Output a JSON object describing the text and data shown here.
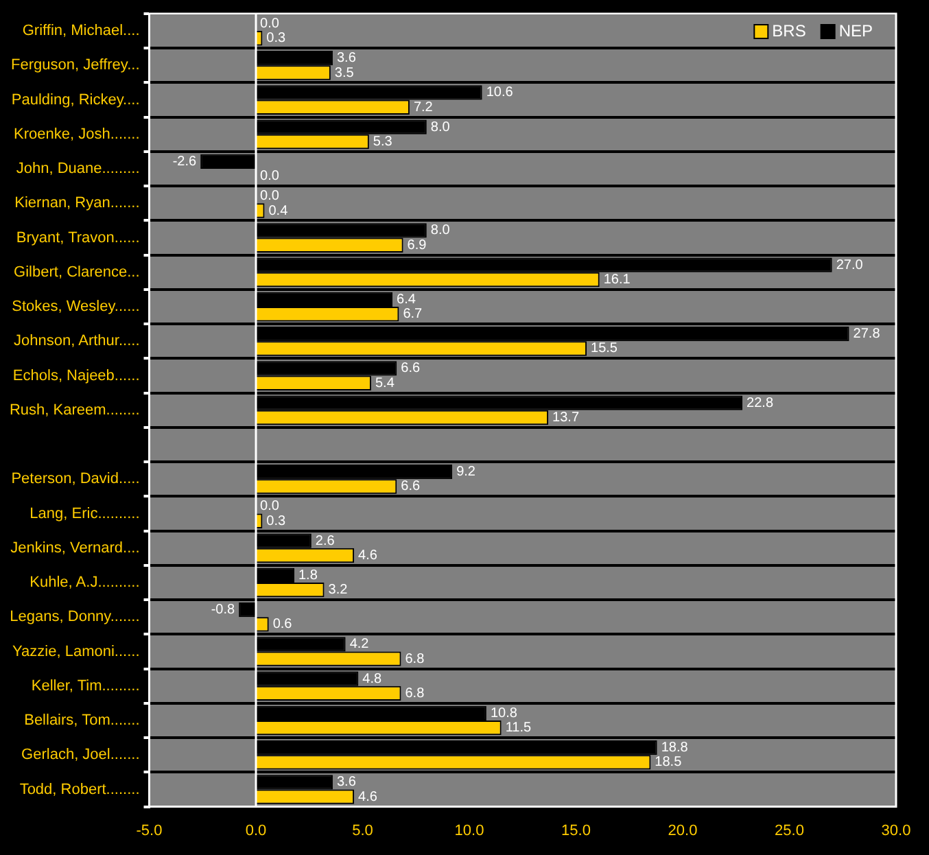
{
  "chart_data": {
    "type": "bar",
    "orientation": "horizontal",
    "categories": [
      "Griffin, Michael....",
      "Ferguson, Jeffrey...",
      "Paulding, Rickey....",
      "Kroenke, Josh.......",
      "John, Duane.........",
      "Kiernan, Ryan.......",
      "Bryant, Travon......",
      "Gilbert, Clarence...",
      "Stokes, Wesley......",
      "Johnson, Arthur.....",
      "Echols, Najeeb......",
      "Rush, Kareem........",
      null,
      "Peterson, David.....",
      "Lang, Eric..........",
      "Jenkins, Vernard....",
      "Kuhle, A.J..........",
      "Legans, Donny.......",
      "Yazzie, Lamoni......",
      "Keller, Tim.........",
      "Bellairs, Tom.......",
      "Gerlach, Joel.......",
      "Todd, Robert........"
    ],
    "series": [
      {
        "name": "NEP",
        "color": "#000000",
        "values": [
          0.0,
          3.6,
          10.6,
          8.0,
          -2.6,
          0.0,
          8.0,
          27.0,
          6.4,
          27.8,
          6.6,
          22.8,
          null,
          9.2,
          0.0,
          2.6,
          1.8,
          -0.8,
          4.2,
          4.8,
          10.8,
          18.8,
          3.6
        ],
        "value_labels": [
          "0.0",
          "3.6",
          "10.6",
          "8.0",
          "-2.6",
          "0.0",
          "8.0",
          "27.0",
          "6.4",
          "27.8",
          "6.6",
          "22.8",
          null,
          "9.2",
          "0.0",
          "2.6",
          "1.8",
          "-0.8",
          "4.2",
          "4.8",
          "10.8",
          "18.8",
          "3.6"
        ]
      },
      {
        "name": "BRS",
        "color": "#ffcc00",
        "values": [
          0.3,
          3.5,
          7.2,
          5.3,
          0.0,
          0.4,
          6.9,
          16.1,
          6.7,
          15.5,
          5.4,
          13.7,
          null,
          6.6,
          0.3,
          4.6,
          3.2,
          0.6,
          6.8,
          6.8,
          11.5,
          18.5,
          4.6
        ],
        "value_labels": [
          "0.3",
          "3.5",
          "7.2",
          "5.3",
          "0.0",
          "0.4",
          "6.9",
          "16.1",
          "6.7",
          "15.5",
          "5.4",
          "13.7",
          null,
          "6.6",
          "0.3",
          "4.6",
          "3.2",
          "0.6",
          "6.8",
          "6.8",
          "11.5",
          "18.5",
          "4.6"
        ]
      }
    ],
    "xlim": [
      -5,
      30
    ],
    "xticks": [
      {
        "value": -5,
        "label": "-5.0"
      },
      {
        "value": 0,
        "label": "0.0"
      },
      {
        "value": 5,
        "label": "5.0"
      },
      {
        "value": 10,
        "label": "10.0"
      },
      {
        "value": 15,
        "label": "15.0"
      },
      {
        "value": 20,
        "label": "20.0"
      },
      {
        "value": 25,
        "label": "25.0"
      },
      {
        "value": 30,
        "label": "30.0"
      }
    ],
    "grid": "y",
    "legend": "top right"
  }
}
